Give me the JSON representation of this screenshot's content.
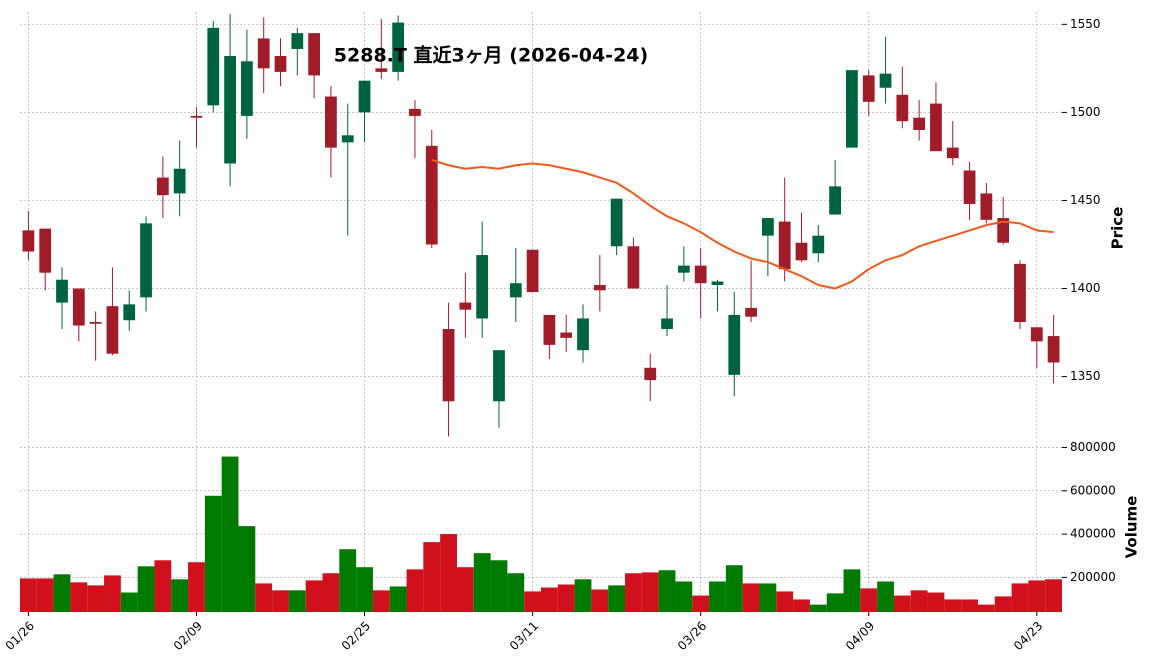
{
  "chart_data": {
    "type": "candlestick",
    "title": "5288.T 直近3ヶ月 (2026-04-24)",
    "ylabel": "Price",
    "volume_label": "Volume",
    "categories": [
      "01/26",
      null,
      null,
      null,
      null,
      null,
      null,
      null,
      null,
      null,
      "02/09",
      null,
      null,
      null,
      null,
      null,
      null,
      null,
      null,
      null,
      "02/25",
      null,
      null,
      null,
      null,
      null,
      null,
      null,
      null,
      null,
      "03/11",
      null,
      null,
      null,
      null,
      null,
      null,
      null,
      null,
      null,
      "03/26",
      null,
      null,
      null,
      null,
      null,
      null,
      null,
      null,
      null,
      "04/09",
      null,
      null,
      null,
      null,
      null,
      null,
      null,
      null,
      null,
      "04/23",
      null
    ],
    "open": [
      1433,
      1434,
      1392,
      1400,
      1381,
      1390,
      1382,
      1395,
      1463,
      1454,
      1498,
      1504,
      1471,
      1498,
      1542,
      1532,
      1536,
      1545,
      1509,
      1483,
      1500,
      1525,
      1523,
      1502,
      1481,
      1377,
      1392,
      1383,
      1336,
      1395,
      1422,
      1385,
      1375,
      1365,
      1402,
      1424,
      1424,
      1355,
      1377,
      1409,
      1413,
      1402,
      1351,
      1389,
      1430,
      1438,
      1426,
      1420,
      1442,
      1480,
      1521,
      1514,
      1510,
      1497,
      1505,
      1480,
      1467,
      1454,
      1440,
      1414,
      1378,
      1373
    ],
    "high": [
      1444,
      1434,
      1412,
      1400,
      1387,
      1412,
      1399,
      1441,
      1475,
      1484,
      1503,
      1552,
      1556,
      1547,
      1554,
      1542,
      1548,
      1545,
      1515,
      1505,
      1518,
      1553,
      1555,
      1507,
      1490,
      1392,
      1409,
      1438,
      1365,
      1423,
      1422,
      1385,
      1385,
      1391,
      1419,
      1451,
      1429,
      1363,
      1402,
      1424,
      1423,
      1405,
      1398,
      1416,
      1440,
      1463,
      1443,
      1436,
      1473,
      1524,
      1524,
      1543,
      1526,
      1507,
      1517,
      1495,
      1472,
      1460,
      1452,
      1416,
      1378,
      1385
    ],
    "low": [
      1416,
      1399,
      1377,
      1370,
      1359,
      1362,
      1376,
      1387,
      1440,
      1441,
      1480,
      1500,
      1458,
      1485,
      1511,
      1515,
      1521,
      1508,
      1463,
      1430,
      1483,
      1519,
      1518,
      1474,
      1423,
      1316,
      1372,
      1372,
      1321,
      1381,
      1398,
      1360,
      1364,
      1358,
      1387,
      1419,
      1400,
      1336,
      1373,
      1404,
      1383,
      1387,
      1339,
      1381,
      1407,
      1404,
      1415,
      1415,
      1442,
      1480,
      1498,
      1505,
      1491,
      1484,
      1478,
      1470,
      1439,
      1437,
      1425,
      1377,
      1355,
      1346
    ],
    "close": [
      1421,
      1409,
      1405,
      1379,
      1380,
      1363,
      1391,
      1437,
      1453,
      1468,
      1497,
      1548,
      1532,
      1529,
      1525,
      1523,
      1545,
      1521,
      1480,
      1487,
      1518,
      1523,
      1551,
      1498,
      1425,
      1336,
      1388,
      1419,
      1365,
      1403,
      1398,
      1368,
      1372,
      1383,
      1399,
      1451,
      1400,
      1348,
      1383,
      1413,
      1403,
      1404,
      1385,
      1384,
      1440,
      1411,
      1416,
      1430,
      1458,
      1524,
      1506,
      1522,
      1495,
      1490,
      1478,
      1474,
      1448,
      1439,
      1426,
      1381,
      1370,
      1358
    ],
    "volume": [
      195000,
      195000,
      214000,
      177000,
      163000,
      209000,
      130000,
      251000,
      279000,
      191000,
      270000,
      577000,
      758000,
      437000,
      172000,
      140000,
      140000,
      186000,
      219000,
      330000,
      247000,
      140000,
      158000,
      237000,
      363000,
      400000,
      247000,
      312000,
      279000,
      219000,
      135000,
      153000,
      167000,
      191000,
      144000,
      163000,
      219000,
      223000,
      233000,
      181000,
      116000,
      181000,
      256000,
      172000,
      172000,
      135000,
      98000,
      74000,
      126000,
      237000,
      149000,
      181000,
      116000,
      140000,
      130000,
      98000,
      98000,
      74000,
      112000,
      172000,
      186000,
      191000
    ],
    "ma": {
      "color": "#f05a1a",
      "values": [
        null,
        null,
        null,
        null,
        null,
        null,
        null,
        null,
        null,
        null,
        null,
        null,
        null,
        null,
        null,
        null,
        null,
        null,
        null,
        null,
        null,
        null,
        null,
        null,
        1473,
        1470,
        1468,
        1469,
        1468,
        1470,
        1471,
        1470,
        1468,
        1466,
        1463,
        1460,
        1454,
        1447,
        1441,
        1437,
        1432,
        1426,
        1421,
        1417,
        1415,
        1411,
        1407,
        1402,
        1400,
        1404,
        1411,
        1416,
        1419,
        1424,
        1427,
        1430,
        1433,
        1436,
        1438,
        1437,
        1433,
        1432
      ]
    },
    "up_color": "#006340",
    "down_color": "#a01c28",
    "volume_up_color": "#007a00",
    "volume_down_color": "#d0101c",
    "ylim": [
      1314,
      1557
    ],
    "yticks": [
      1350,
      1400,
      1450,
      1500,
      1550
    ],
    "volume_ylim": [
      40000,
      830000
    ],
    "volume_yticks": [
      200000,
      400000,
      600000,
      800000
    ],
    "grid": true
  }
}
